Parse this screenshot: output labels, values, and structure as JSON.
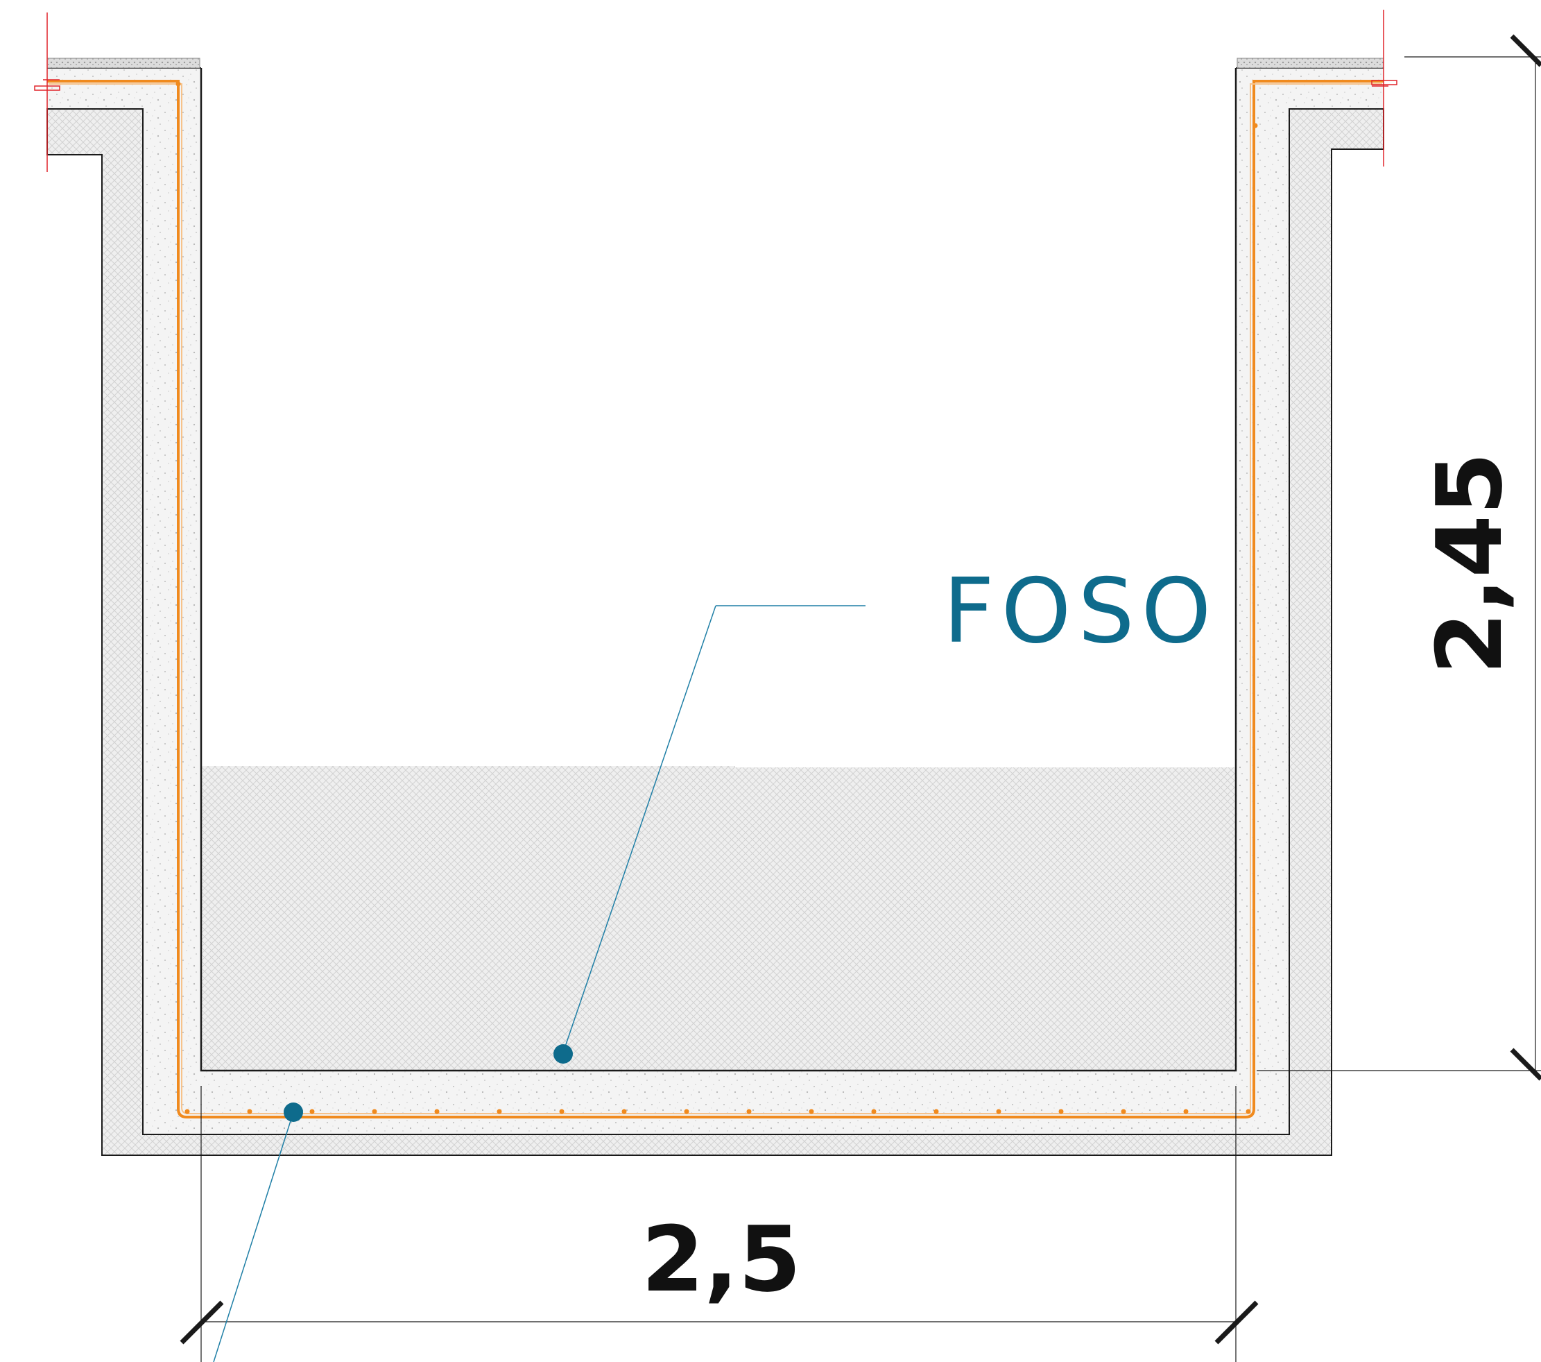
{
  "label": {
    "text": "FOSO",
    "color": "#0e6b8c"
  },
  "dimensions": {
    "width_text": "2,5",
    "height_text": "2,45"
  },
  "colors": {
    "outline": "#1a1a1a",
    "rebar": "#f08a1e",
    "leader": "#1f7fa6",
    "marker": "#0e6b8c",
    "cut_mark": "#e0242a",
    "concrete_fill": "#f3f3f3",
    "waterproofing": "#ececec"
  }
}
